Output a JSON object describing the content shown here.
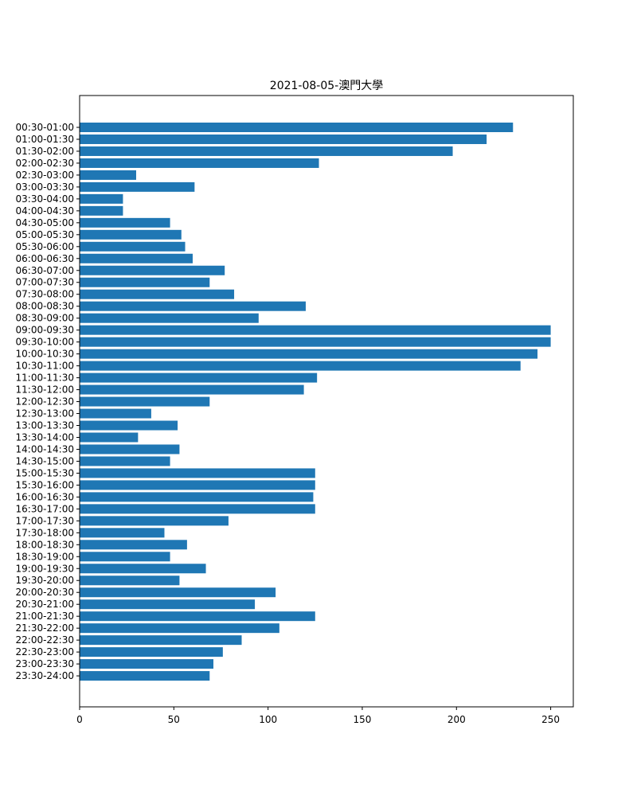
{
  "chart_data": {
    "type": "bar",
    "orientation": "horizontal",
    "title": "2021-08-05-澳門大學",
    "xlabel": "",
    "ylabel": "",
    "xlim": [
      0,
      262
    ],
    "xticks": [
      0,
      50,
      100,
      150,
      200,
      250
    ],
    "grid": false,
    "bar_color": "#1f77b4",
    "categories": [
      "00:30-01:00",
      "01:00-01:30",
      "01:30-02:00",
      "02:00-02:30",
      "02:30-03:00",
      "03:00-03:30",
      "03:30-04:00",
      "04:00-04:30",
      "04:30-05:00",
      "05:00-05:30",
      "05:30-06:00",
      "06:00-06:30",
      "06:30-07:00",
      "07:00-07:30",
      "07:30-08:00",
      "08:00-08:30",
      "08:30-09:00",
      "09:00-09:30",
      "09:30-10:00",
      "10:00-10:30",
      "10:30-11:00",
      "11:00-11:30",
      "11:30-12:00",
      "12:00-12:30",
      "12:30-13:00",
      "13:00-13:30",
      "13:30-14:00",
      "14:00-14:30",
      "14:30-15:00",
      "15:00-15:30",
      "15:30-16:00",
      "16:00-16:30",
      "16:30-17:00",
      "17:00-17:30",
      "17:30-18:00",
      "18:00-18:30",
      "18:30-19:00",
      "19:00-19:30",
      "19:30-20:00",
      "20:00-20:30",
      "20:30-21:00",
      "21:00-21:30",
      "21:30-22:00",
      "22:00-22:30",
      "22:30-23:00",
      "23:00-23:30",
      "23:30-24:00"
    ],
    "values": [
      230,
      216,
      198,
      127,
      30,
      61,
      23,
      23,
      48,
      54,
      56,
      60,
      77,
      69,
      82,
      120,
      95,
      250,
      250,
      243,
      234,
      126,
      119,
      69,
      38,
      52,
      31,
      53,
      48,
      125,
      125,
      124,
      125,
      79,
      45,
      57,
      48,
      67,
      53,
      104,
      93,
      125,
      106,
      86,
      76,
      71,
      69
    ]
  }
}
